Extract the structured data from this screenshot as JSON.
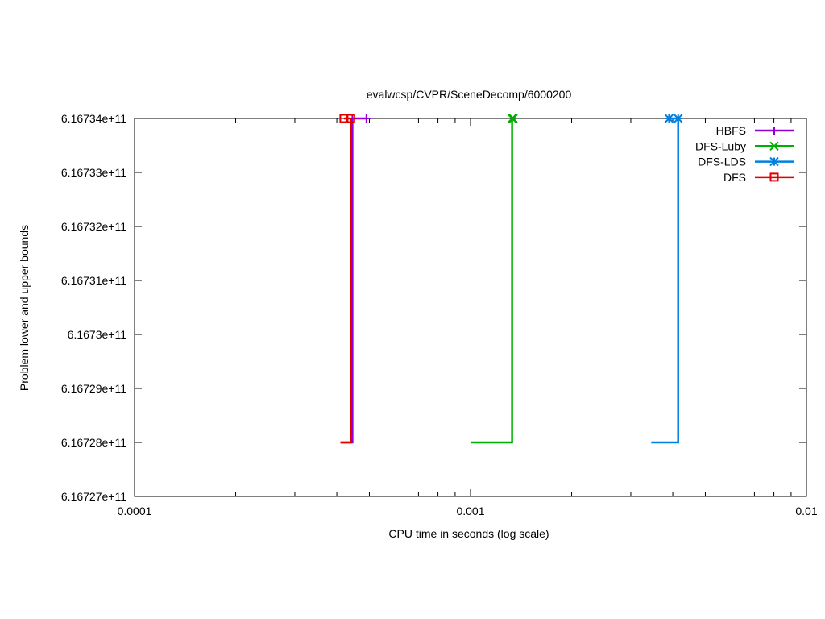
{
  "chart_data": {
    "type": "line",
    "title": "evalwcsp/CVPR/SceneDecomp/6000200",
    "xlabel": "CPU time in seconds (log scale)",
    "ylabel": "Problem lower and upper bounds",
    "x_scale": "log",
    "xlim": [
      0.0001,
      0.01
    ],
    "ylim": [
      616727000000,
      616734000000
    ],
    "x_ticks": [
      "0.0001",
      "0.001",
      "0.01"
    ],
    "y_ticks": [
      "6.16727e+11",
      "6.16728e+11",
      "6.16729e+11",
      "6.1673e+11",
      "6.16731e+11",
      "6.16732e+11",
      "6.16733e+11",
      "6.16734e+11"
    ],
    "legend_position": "top-right",
    "grid": false,
    "series": [
      {
        "name": "HBFS",
        "color": "#9400d3",
        "marker": "plus",
        "lower": [
          [
            0.00041,
            616728000000
          ],
          [
            0.000445,
            616728000000
          ],
          [
            0.000445,
            616734000000
          ]
        ],
        "upper": [
          [
            0.000445,
            616734000000
          ],
          [
            0.00049,
            616734000000
          ]
        ]
      },
      {
        "name": "DFS-Luby",
        "color": "#00b000",
        "marker": "x",
        "lower": [
          [
            0.001,
            616728000000
          ],
          [
            0.00133,
            616728000000
          ],
          [
            0.00133,
            616734000000
          ]
        ],
        "upper": [
          [
            0.00133,
            616734000000
          ],
          [
            0.00134,
            616734000000
          ]
        ]
      },
      {
        "name": "DFS-LDS",
        "color": "#0080e0",
        "marker": "star",
        "lower": [
          [
            0.00345,
            616728000000
          ],
          [
            0.00415,
            616728000000
          ],
          [
            0.00415,
            616734000000
          ]
        ],
        "upper": [
          [
            0.0039,
            616734000000
          ],
          [
            0.00415,
            616734000000
          ]
        ]
      },
      {
        "name": "DFS",
        "color": "#e00000",
        "marker": "square",
        "lower": [
          [
            0.00041,
            616728000000
          ],
          [
            0.00044,
            616728000000
          ],
          [
            0.00044,
            616734000000
          ]
        ],
        "upper": [
          [
            0.00042,
            616734000000
          ],
          [
            0.00044,
            616734000000
          ]
        ]
      }
    ]
  }
}
